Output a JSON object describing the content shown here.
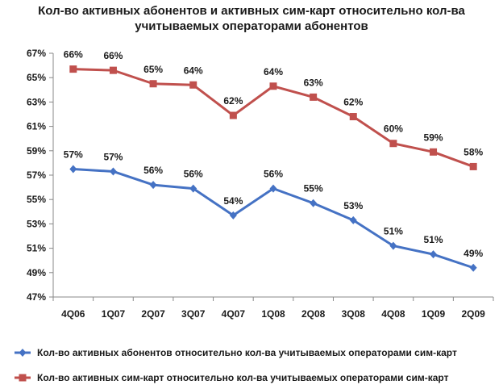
{
  "chart_data": {
    "type": "line",
    "title": [
      "Кол-во активных абонентов и активных сим-карт относительно кол-ва",
      "учитываемых операторами абонентов"
    ],
    "categories": [
      "4Q06",
      "1Q07",
      "2Q07",
      "3Q07",
      "4Q07",
      "1Q08",
      "2Q08",
      "3Q08",
      "4Q08",
      "1Q09",
      "2Q09"
    ],
    "y_ticks": [
      "47%",
      "49%",
      "51%",
      "53%",
      "55%",
      "57%",
      "59%",
      "61%",
      "63%",
      "65%",
      "67%"
    ],
    "ylim": [
      47,
      67
    ],
    "grid": false,
    "legend_position": "bottom",
    "series": [
      {
        "name": "Кол-во активных абонентов относительно кол-ва учитываемых операторами сим-карт",
        "color": "#4572c4",
        "marker": "diamond",
        "values": [
          57.5,
          57.3,
          56.2,
          55.9,
          53.7,
          55.9,
          54.7,
          53.3,
          51.2,
          50.5,
          49.4
        ],
        "labels": [
          "57%",
          "57%",
          "56%",
          "56%",
          "54%",
          "56%",
          "55%",
          "53%",
          "51%",
          "51%",
          "49%"
        ]
      },
      {
        "name": "Кол-во активных сим-карт относительно кол-ва учитываемых операторами сим-карт",
        "color": "#c0504d",
        "marker": "square",
        "values": [
          65.7,
          65.6,
          64.5,
          64.4,
          61.9,
          64.3,
          63.4,
          61.8,
          59.6,
          58.9,
          57.7
        ],
        "labels": [
          "66%",
          "66%",
          "65%",
          "64%",
          "62%",
          "64%",
          "63%",
          "62%",
          "60%",
          "59%",
          "58%"
        ]
      }
    ]
  }
}
